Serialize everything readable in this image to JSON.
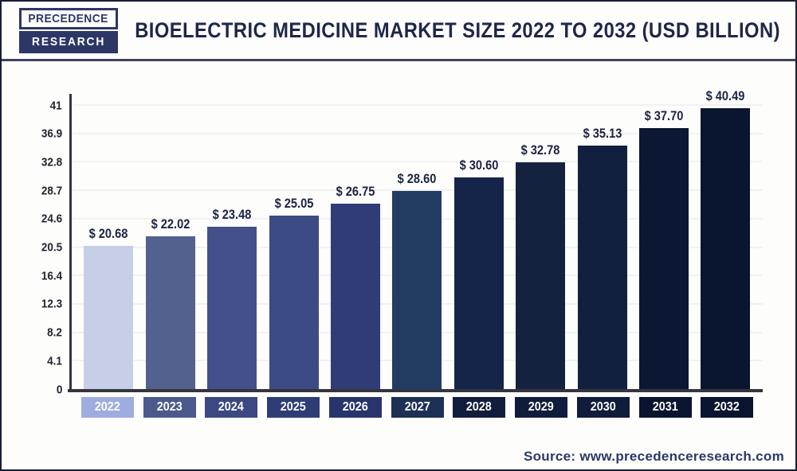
{
  "header": {
    "logo_line1": "PRECEDENCE",
    "logo_line2": "RESEARCH",
    "title": "BIOELECTRIC MEDICINE MARKET SIZE 2022 TO 2032 (USD BILLION)"
  },
  "chart_data": {
    "type": "bar",
    "title": "Bioelectric Medicine Market Size 2022 to 2032 (USD Billion)",
    "categories": [
      "2022",
      "2023",
      "2024",
      "2025",
      "2026",
      "2027",
      "2028",
      "2029",
      "2030",
      "2031",
      "2032"
    ],
    "values": [
      20.68,
      22.02,
      23.48,
      25.05,
      26.75,
      28.6,
      30.6,
      32.78,
      35.13,
      37.7,
      40.49
    ],
    "value_labels": [
      "$ 20.68",
      "$ 22.02",
      "$ 23.48",
      "$ 25.05",
      "$ 26.75",
      "$ 28.60",
      "$ 30.60",
      "$ 32.78",
      "$ 35.13",
      "$ 37.70",
      "$ 40.49"
    ],
    "y_ticks": [
      0,
      4.1,
      8.2,
      12.3,
      16.4,
      20.5,
      24.6,
      28.7,
      32.8,
      36.9,
      41
    ],
    "y_tick_labels": [
      "0",
      "4.1",
      "8.2",
      "12.3",
      "16.4",
      "20.5",
      "24.6",
      "28.7",
      "32.8",
      "36.9",
      "41"
    ],
    "ylim": [
      0,
      41
    ],
    "xlabel": "",
    "ylabel": "",
    "grid": true,
    "legend": "none",
    "bar_colors": [
      "#c7cfe8",
      "#53618e",
      "#44508a",
      "#3c4b83",
      "#2f3c75",
      "#223c63",
      "#152449",
      "#142240",
      "#122040",
      "#0c1733",
      "#0a162f"
    ],
    "label_box_colors": [
      "#9face0",
      "#4b5a8a",
      "#3b4882",
      "#2f3d76",
      "#28356c",
      "#1d3056",
      "#111d3c",
      "#101c3c",
      "#0f1c3a",
      "#0a142e",
      "#0a142e"
    ]
  },
  "footer": {
    "source_label": "Source: www.precedenceresearch.com"
  },
  "colors": {
    "brand_navy": "#2c3765",
    "title_text": "#1e2749",
    "axis_line": "#34353f",
    "gridline": "#f1f1f1",
    "value_text": "#1b2340",
    "source_text": "#2b3a66",
    "frame_border": "#161d33"
  }
}
